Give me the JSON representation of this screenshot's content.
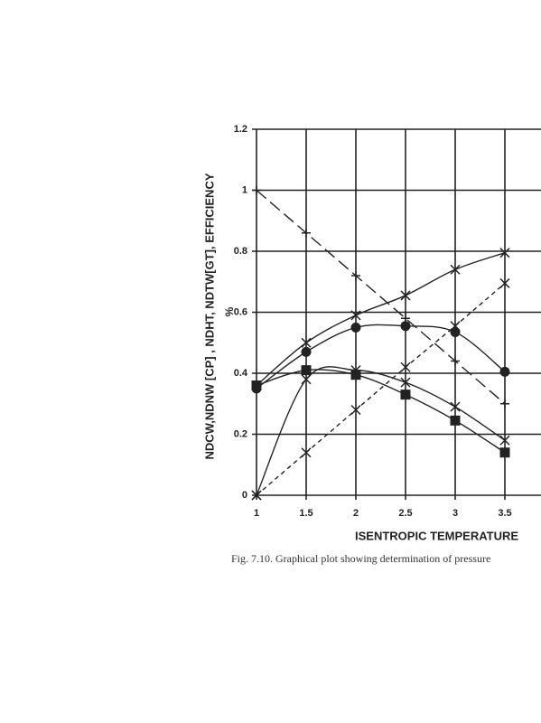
{
  "chart_data": {
    "type": "line",
    "xlabel": "ISENTROPIC TEMPERATURE",
    "ylabel": "NDCW,NDNW [CP] , NDHT, NDTW[GT], EFFICIENCY",
    "yunit": "%",
    "caption": "Fig. 7.10. Graphical plot showing determination of pressure",
    "x": [
      1,
      1.5,
      2,
      2.5,
      3,
      3.5
    ],
    "xlim": [
      1,
      3.86
    ],
    "xticks": [
      1,
      1.5,
      2,
      2.5,
      3,
      3.5
    ],
    "ylim": [
      0,
      1.2
    ],
    "yticks": [
      0,
      0.2,
      0.4,
      0.6,
      0.8,
      1,
      1.2
    ],
    "grid": true,
    "series": [
      {
        "color": "#222222",
        "marker": "plus",
        "dash": "long",
        "values": [
          1,
          0.86,
          0.72,
          0.58,
          0.44,
          0.3
        ]
      },
      {
        "color": "#222222",
        "marker": "cross",
        "dash": "short",
        "values": [
          0,
          0.14,
          0.28,
          0.42,
          0.555,
          0.695
        ]
      },
      {
        "color": "#222222",
        "marker": "cross",
        "dash": "none",
        "values": [
          0.36,
          0.5,
          0.59,
          0.655,
          0.74,
          0.795
        ]
      },
      {
        "color": "#222222",
        "marker": "cross",
        "dash": "none",
        "values": [
          0,
          0.38,
          0.41,
          0.37,
          0.29,
          0.18
        ]
      },
      {
        "color": "#222222",
        "marker": "circle",
        "dash": "none",
        "values": [
          0.35,
          0.47,
          0.55,
          0.555,
          0.535,
          0.405
        ]
      },
      {
        "color": "#222222",
        "marker": "square",
        "dash": "none",
        "values": [
          0.36,
          0.41,
          0.395,
          0.33,
          0.245,
          0.14
        ]
      }
    ]
  }
}
